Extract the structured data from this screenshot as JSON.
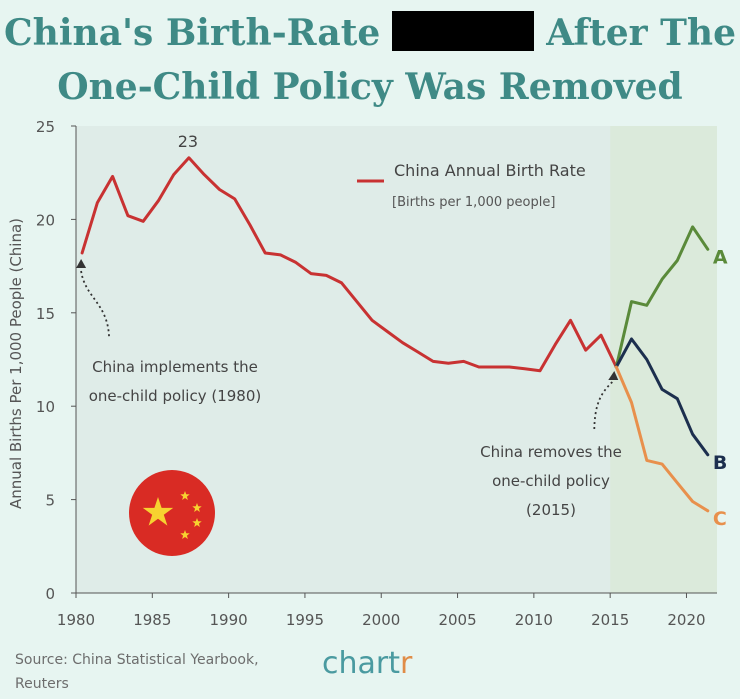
{
  "header": {
    "title_part1": "China's Birth-Rate",
    "title_part2": "After The",
    "title_line2": "One-Child Policy Was Removed"
  },
  "footer": {
    "source_line1": "Source: China Statistical Yearbook,",
    "source_line2": "Reuters",
    "logo_main": "chart",
    "logo_accent": "r"
  },
  "colors": {
    "historical": "#c83232",
    "scenario_a": "#5a8a3a",
    "scenario_b": "#1c2f4e",
    "scenario_c": "#e8904c",
    "bg": "#e7f5f1",
    "plot_bg": "#dfece8",
    "shade": "#dbeadb"
  },
  "chart_data": {
    "type": "line",
    "ylabel": "Annual Births Per 1,000 People (China)",
    "xlim": [
      1980,
      2022
    ],
    "ylim": [
      0,
      25
    ],
    "xticks": [
      1980,
      1985,
      1990,
      1995,
      2000,
      2005,
      2010,
      2015,
      2020
    ],
    "yticks": [
      0,
      5,
      10,
      15,
      20,
      25
    ],
    "legend": {
      "label": "China Annual Birth Rate",
      "sublabel": "[Births per 1,000 people]"
    },
    "peak_label": "23",
    "shaded_from": 2015,
    "series": [
      {
        "name": "China Annual Birth Rate",
        "color_key": "historical",
        "x": [
          1980.4,
          1981.4,
          1982.4,
          1983.4,
          1984.4,
          1985.4,
          1986.4,
          1987.4,
          1988.4,
          1989.4,
          1990.4,
          1991.4,
          1992.4,
          1993.4,
          1994.4,
          1995.4,
          1996.4,
          1997.4,
          1998.4,
          1999.4,
          2000.4,
          2001.4,
          2002.4,
          2003.4,
          2004.4,
          2005.4,
          2006.4,
          2007.4,
          2008.4,
          2009.4,
          2010.4,
          2011.4,
          2012.4,
          2013.4,
          2014.4,
          2015.4
        ],
        "values": [
          18.2,
          20.9,
          22.3,
          20.2,
          19.9,
          21.0,
          22.4,
          23.3,
          22.4,
          21.6,
          21.1,
          19.7,
          18.2,
          18.1,
          17.7,
          17.1,
          17.0,
          16.6,
          15.6,
          14.6,
          14.0,
          13.4,
          12.9,
          12.4,
          12.3,
          12.4,
          12.1,
          12.1,
          12.1,
          12.0,
          11.9,
          13.3,
          14.6,
          13.0,
          13.8,
          12.1
        ]
      },
      {
        "name": "A",
        "color_key": "scenario_a",
        "x": [
          2015.4,
          2016.4,
          2017.4,
          2018.4,
          2019.4,
          2020.4,
          2021.4
        ],
        "values": [
          12.1,
          15.6,
          15.4,
          16.8,
          17.8,
          19.6,
          18.4
        ]
      },
      {
        "name": "B",
        "color_key": "scenario_b",
        "x": [
          2015.4,
          2016.4,
          2017.4,
          2018.4,
          2019.4,
          2020.4,
          2021.4
        ],
        "values": [
          12.1,
          13.6,
          12.5,
          10.9,
          10.4,
          8.5,
          7.4
        ]
      },
      {
        "name": "C",
        "color_key": "scenario_c",
        "x": [
          2015.4,
          2016.4,
          2017.4,
          2018.4,
          2019.4,
          2020.4,
          2021.4
        ],
        "values": [
          12.1,
          10.2,
          7.1,
          6.9,
          5.9,
          4.9,
          4.4
        ]
      }
    ],
    "annotations": [
      {
        "id": "policy-1980",
        "lines": [
          "China implements the",
          "one-child policy (1980)"
        ],
        "arrow_to": [
          1980.4,
          18.2
        ]
      },
      {
        "id": "policy-2015",
        "lines": [
          "China removes the",
          "one-child policy",
          "(2015)"
        ],
        "arrow_to": [
          2015.4,
          12.1
        ]
      }
    ]
  }
}
